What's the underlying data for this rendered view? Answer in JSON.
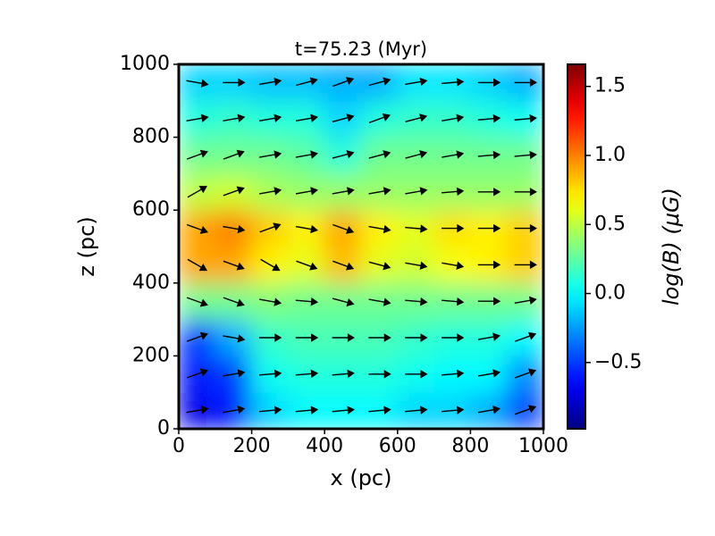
{
  "chart_data": {
    "type": "heatmap",
    "title": "t=75.23 (Myr)",
    "x_label": "x (pc)",
    "y_label": "z (pc)",
    "colorbar_label": "log(B) (μG)",
    "colormap": "jet",
    "x": [
      50,
      150,
      250,
      350,
      450,
      550,
      650,
      750,
      850,
      950
    ],
    "y": [
      50,
      150,
      250,
      350,
      450,
      550,
      650,
      750,
      850,
      950
    ],
    "values": [
      [
        -0.7,
        -0.6,
        -0.1,
        0,
        0,
        0,
        -0.1,
        -0.1,
        -0.2,
        -0.5
      ],
      [
        -0.6,
        -0.5,
        0.05,
        0.1,
        0.1,
        0.1,
        0.05,
        0,
        0,
        -0.3
      ],
      [
        -0.5,
        -0.2,
        0.15,
        0.2,
        0.2,
        0.2,
        0.15,
        0.1,
        0.1,
        0
      ],
      [
        0.3,
        0.3,
        0.35,
        0.3,
        0.3,
        0.3,
        0.3,
        0.3,
        0.3,
        0.3
      ],
      [
        0.9,
        0.9,
        0.7,
        0.6,
        0.85,
        0.6,
        0.55,
        0.65,
        0.7,
        0.8
      ],
      [
        0.9,
        1.0,
        0.8,
        0.7,
        0.9,
        0.7,
        0.6,
        0.75,
        0.7,
        0.8
      ],
      [
        0.5,
        0.55,
        0.45,
        0.4,
        0.4,
        0.4,
        0.4,
        0.4,
        0.4,
        0.4
      ],
      [
        0.3,
        0.3,
        0.3,
        0.25,
        0.1,
        0.3,
        0.3,
        0.3,
        0.3,
        0.3
      ],
      [
        0.1,
        0.15,
        0.1,
        0.1,
        -0.1,
        0.1,
        0.15,
        0.15,
        0.1,
        0.05
      ],
      [
        -0.1,
        -0.1,
        -0.15,
        -0.15,
        -0.2,
        -0.2,
        -0.05,
        -0.05,
        -0.1,
        -0.2
      ]
    ],
    "arrow_angles": [
      [
        10,
        10,
        5,
        5,
        5,
        5,
        5,
        5,
        10,
        20
      ],
      [
        20,
        10,
        5,
        5,
        5,
        0,
        0,
        5,
        10,
        20
      ],
      [
        20,
        -10,
        0,
        0,
        0,
        0,
        0,
        0,
        10,
        20
      ],
      [
        -20,
        -20,
        -10,
        -5,
        -15,
        -10,
        -5,
        -5,
        0,
        10
      ],
      [
        -30,
        -20,
        -30,
        -20,
        -20,
        -15,
        -10,
        -10,
        0,
        0
      ],
      [
        -20,
        -10,
        20,
        -10,
        -20,
        -10,
        -5,
        0,
        0,
        0
      ],
      [
        30,
        20,
        10,
        10,
        10,
        10,
        10,
        5,
        0,
        0
      ],
      [
        20,
        20,
        10,
        10,
        15,
        15,
        15,
        10,
        5,
        5
      ],
      [
        10,
        10,
        10,
        10,
        15,
        20,
        15,
        10,
        5,
        5
      ],
      [
        -10,
        0,
        10,
        15,
        20,
        15,
        10,
        5,
        0,
        0
      ]
    ],
    "arrow_color": "#000000",
    "xlim": [
      0,
      1000
    ],
    "ylim": [
      0,
      1000
    ],
    "xticks": [
      0,
      200,
      400,
      600,
      800,
      1000
    ],
    "yticks": [
      0,
      200,
      400,
      600,
      800,
      1000
    ],
    "clim": [
      -0.98,
      1.66
    ],
    "cticks": [
      {
        "value": -0.5,
        "label": "−0.5"
      },
      {
        "value": 0,
        "label": "0.0"
      },
      0.5,
      {
        "value": 1,
        "label": "1.0"
      },
      1.5
    ]
  }
}
